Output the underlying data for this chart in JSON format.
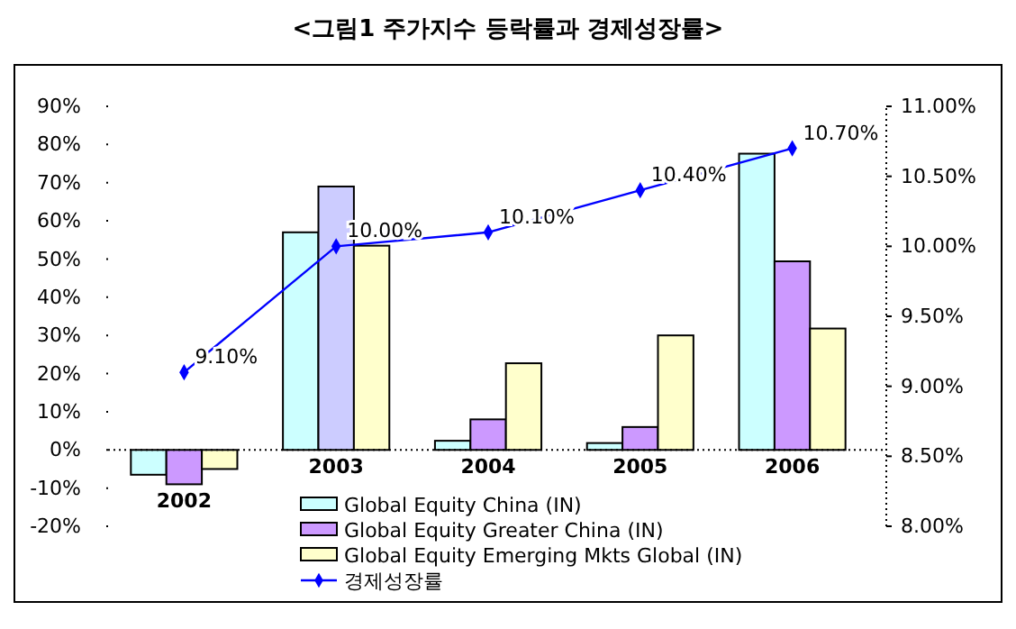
{
  "chart_data": {
    "type": "bar",
    "title": "<그림1 주가지수 등락률과 경제성장률>",
    "categories": [
      "2002",
      "2003",
      "2004",
      "2005",
      "2006"
    ],
    "series": [
      {
        "name": "Global Equity China (IN)",
        "color": "#ccffff",
        "values": [
          -6.5,
          57,
          2.4,
          1.8,
          77.6
        ]
      },
      {
        "name": "Global Equity Greater China (IN)",
        "color": "#cc99ff",
        "colors": [
          "#cc99ff",
          "#ccccff",
          "#cc99ff",
          "#cc99ff",
          "#cc99ff"
        ],
        "values": [
          -9,
          69,
          8,
          6,
          49.4
        ]
      },
      {
        "name": "Global Equity Emerging Mkts Global (IN)",
        "color": "#ffffcc",
        "values": [
          -5,
          53.5,
          22.7,
          30,
          31.8
        ]
      },
      {
        "name": "경제성장률",
        "type": "line",
        "axis": "y2",
        "color": "#0000ff",
        "marker": "diamond",
        "values": [
          9.1,
          10.0,
          10.1,
          10.4,
          10.7
        ],
        "value_labels": [
          "9.10%",
          "10.00%",
          "10.10%",
          "10.40%",
          "10.70%"
        ]
      }
    ],
    "ylim": [
      -20,
      90
    ],
    "yticks": [
      {
        "value": -20,
        "label": "-20%"
      },
      {
        "value": -10,
        "label": "-10%"
      },
      {
        "value": 0,
        "label": "0%"
      },
      {
        "value": 10,
        "label": "10%"
      },
      {
        "value": 20,
        "label": "20%"
      },
      {
        "value": 30,
        "label": "30%"
      },
      {
        "value": 40,
        "label": "40%"
      },
      {
        "value": 50,
        "label": "50%"
      },
      {
        "value": 60,
        "label": "60%"
      },
      {
        "value": 70,
        "label": "70%"
      },
      {
        "value": 80,
        "label": "80%"
      },
      {
        "value": 90,
        "label": "90%"
      }
    ],
    "y2lim": [
      8.0,
      11.0
    ],
    "y2ticks": [
      {
        "value": 8.0,
        "label": "8.00%"
      },
      {
        "value": 8.5,
        "label": "8.50%"
      },
      {
        "value": 9.0,
        "label": "9.00%"
      },
      {
        "value": 9.5,
        "label": "9.50%"
      },
      {
        "value": 10.0,
        "label": "10.00%"
      },
      {
        "value": 10.5,
        "label": "10.50%"
      },
      {
        "value": 11.0,
        "label": "11.00%"
      }
    ],
    "legend": "bottom"
  }
}
